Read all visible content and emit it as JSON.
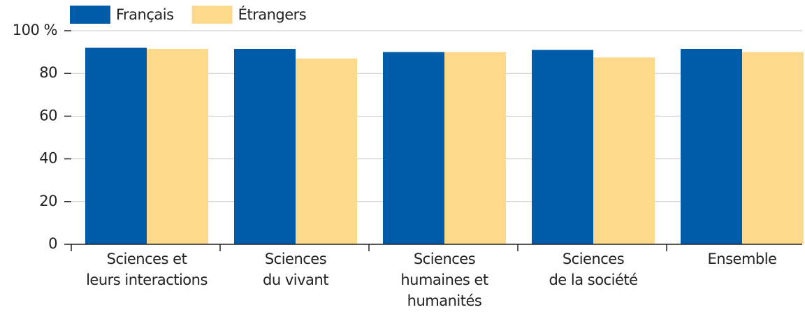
{
  "chart_data": {
    "type": "bar",
    "categories": [
      "Sciences et\nleurs interactions",
      "Sciences\ndu vivant",
      "Sciences\nhumaines et\nhumanités",
      "Sciences\nde la société",
      "Ensemble"
    ],
    "series": [
      {
        "name": "Français",
        "color": "#005ca8",
        "values": [
          92,
          91.5,
          90,
          91,
          91.5
        ]
      },
      {
        "name": "Étrangers",
        "color": "#fcd98b",
        "values": [
          91.5,
          87,
          90,
          87.5,
          90
        ]
      }
    ],
    "ylim": [
      0,
      100
    ],
    "yticks": [
      0,
      20,
      40,
      60,
      80,
      {
        "value": 100,
        "label": "100 %"
      }
    ],
    "grid": true
  }
}
